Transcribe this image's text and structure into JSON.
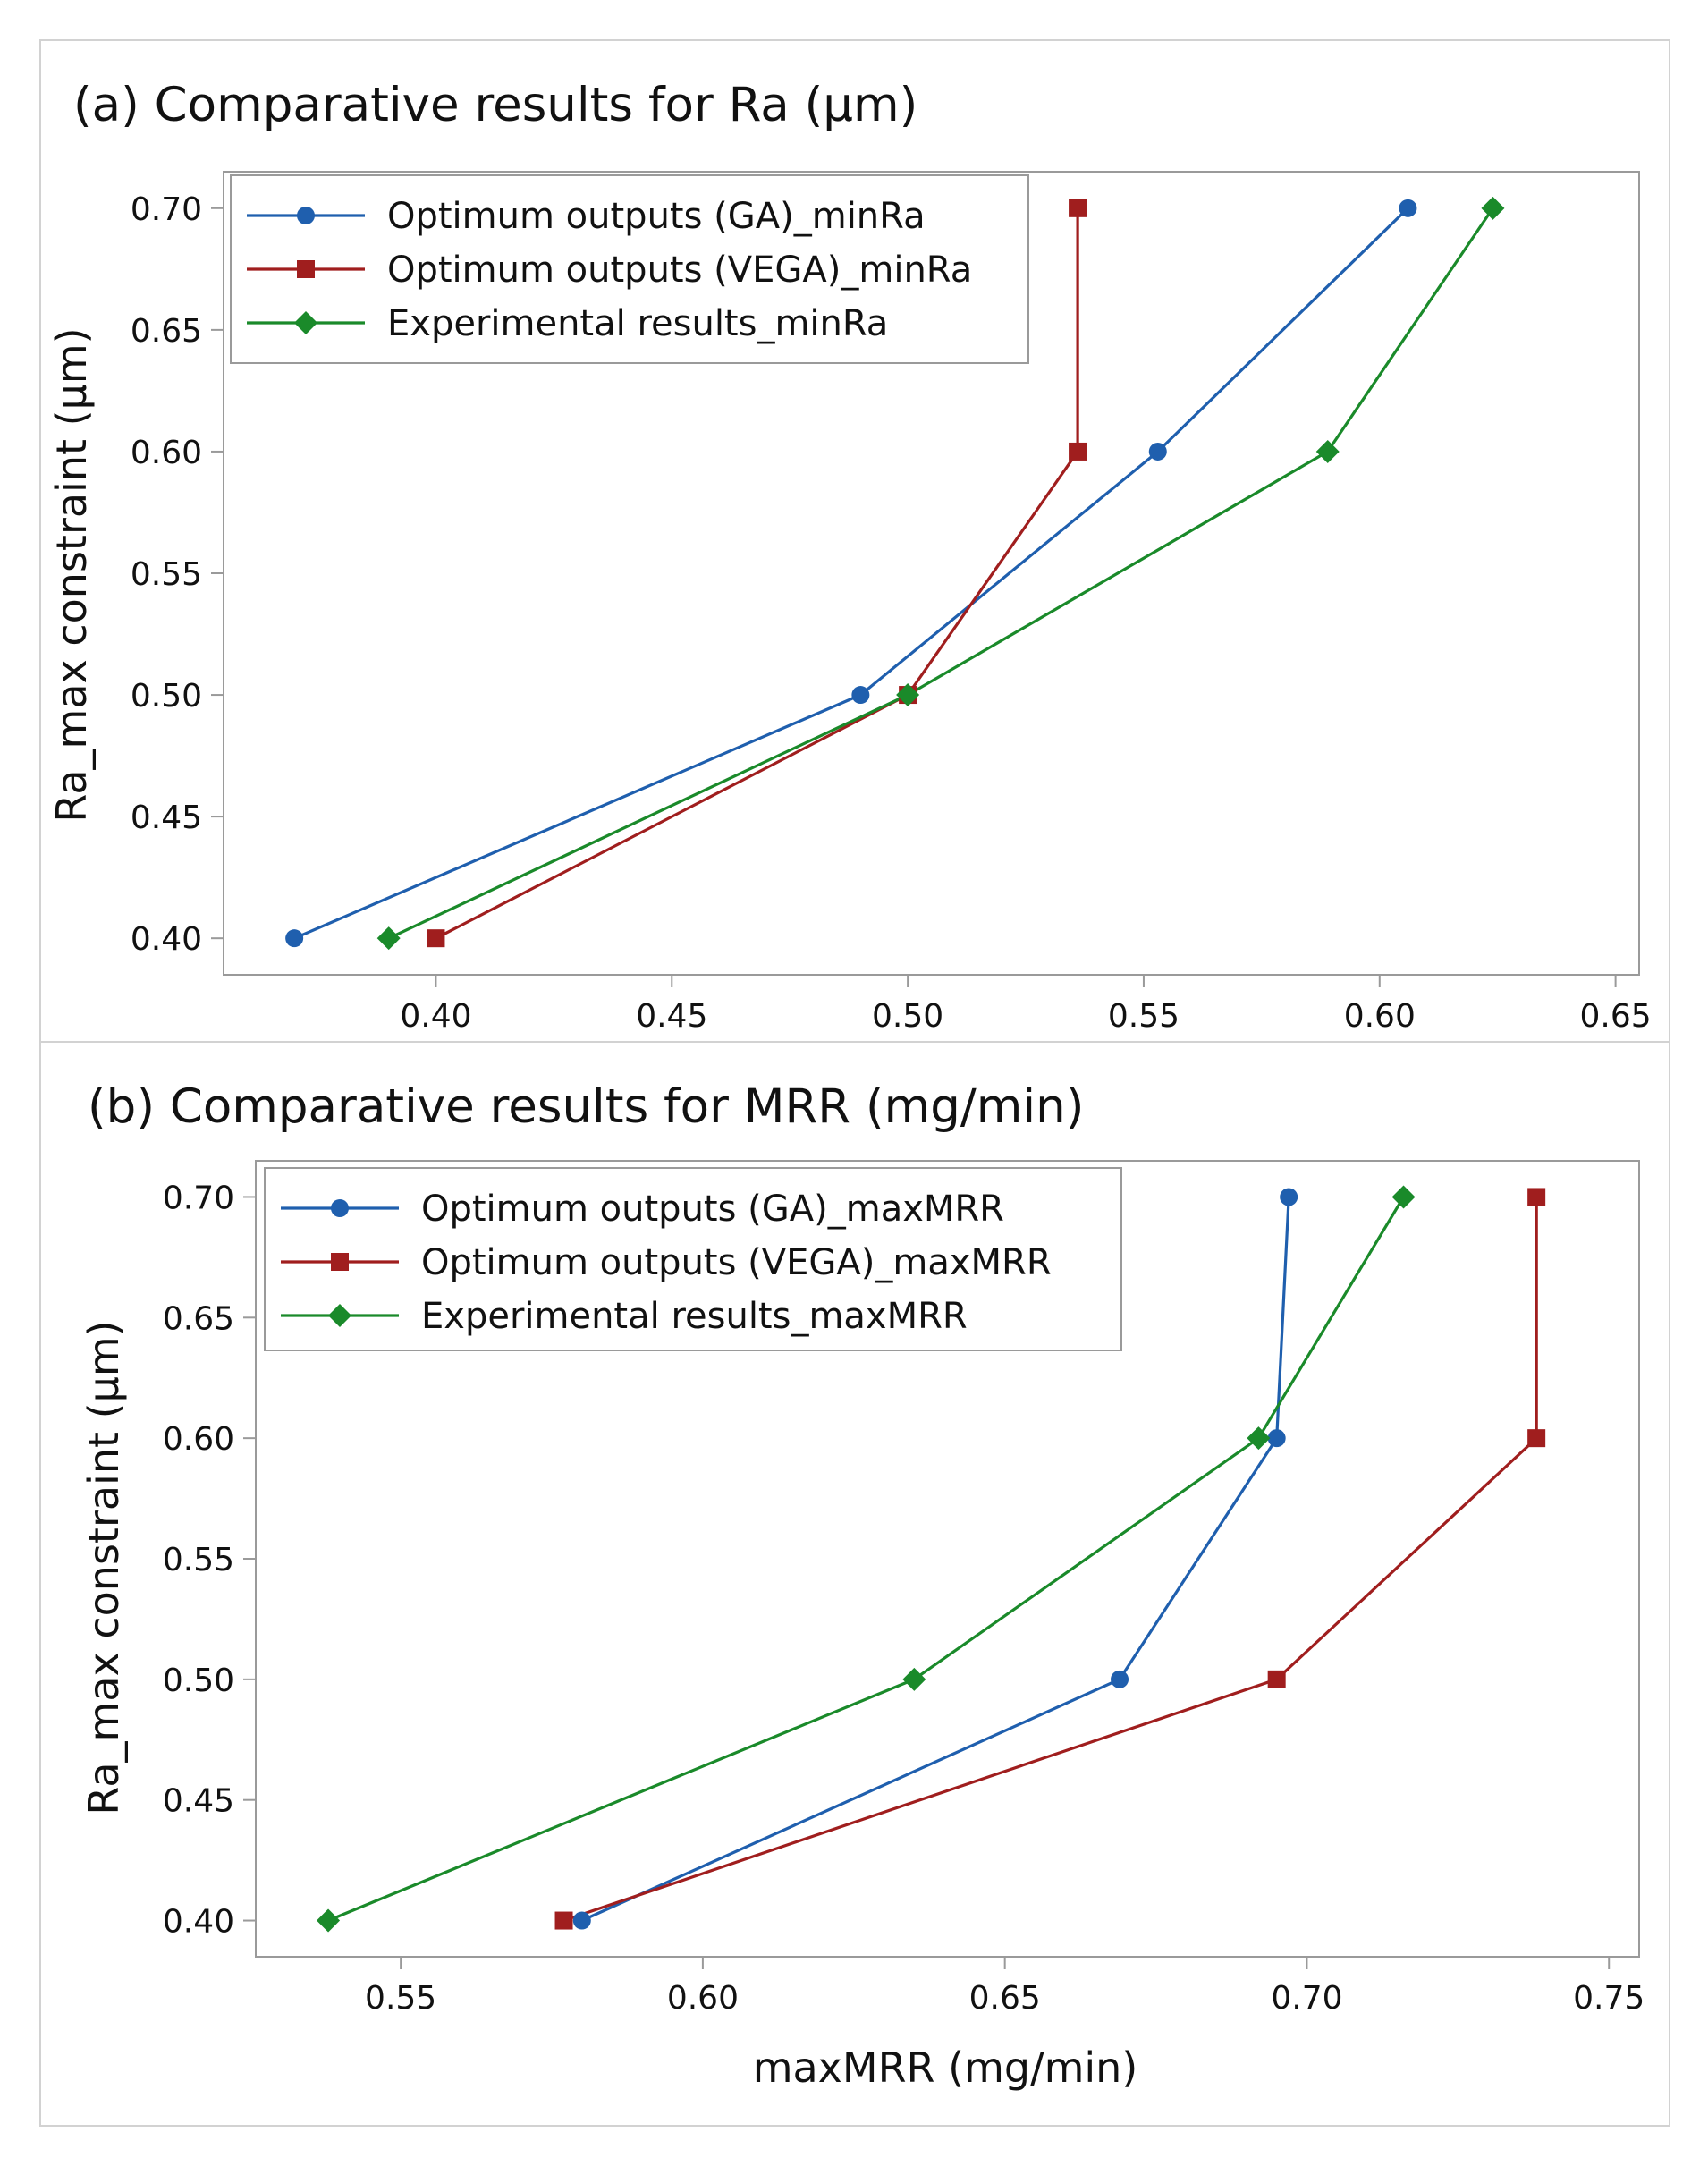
{
  "chart_data": [
    {
      "id": "a",
      "type": "line",
      "title": "(a) Comparative results for Ra (µm)",
      "xlabel": "",
      "ylabel": "Ra_max constraint (µm)",
      "xlim": [
        0.355,
        0.655
      ],
      "ylim": [
        0.385,
        0.715
      ],
      "xticks": [
        "0.40",
        "0.45",
        "0.50",
        "0.55",
        "0.60",
        "0.65"
      ],
      "yticks": [
        "0.40",
        "0.45",
        "0.50",
        "0.55",
        "0.60",
        "0.65",
        "0.70"
      ],
      "legend_position": "top-left",
      "series": [
        {
          "name": "Optimum outputs (GA)_minRa",
          "color": "#1f5fae",
          "marker": "circle",
          "x": [
            0.37,
            0.49,
            0.553,
            0.606
          ],
          "y": [
            0.4,
            0.5,
            0.6,
            0.7
          ]
        },
        {
          "name": "Optimum outputs (VEGA)_minRa",
          "color": "#a01e1e",
          "marker": "square",
          "x": [
            0.4,
            0.5,
            0.536,
            0.536
          ],
          "y": [
            0.4,
            0.5,
            0.6,
            0.7
          ]
        },
        {
          "name": "Experimental results_minRa",
          "color": "#1a8a2a",
          "marker": "diamond",
          "x": [
            0.39,
            0.5,
            0.589,
            0.624
          ],
          "y": [
            0.4,
            0.5,
            0.6,
            0.7
          ]
        }
      ]
    },
    {
      "id": "b",
      "type": "line",
      "title": "(b) Comparative results for MRR (mg/min)",
      "xlabel": "maxMRR (mg/min)",
      "ylabel": "Ra_max constraint (µm)",
      "xlim": [
        0.526,
        0.755
      ],
      "ylim": [
        0.385,
        0.715
      ],
      "xticks": [
        "0.55",
        "0.60",
        "0.65",
        "0.70",
        "0.75"
      ],
      "yticks": [
        "0.40",
        "0.45",
        "0.50",
        "0.55",
        "0.60",
        "0.65",
        "0.70"
      ],
      "legend_position": "top-left",
      "series": [
        {
          "name": "Optimum outputs (GA)_maxMRR",
          "color": "#1f5fae",
          "marker": "circle",
          "x": [
            0.58,
            0.669,
            0.695,
            0.697
          ],
          "y": [
            0.4,
            0.5,
            0.6,
            0.7
          ]
        },
        {
          "name": "Optimum outputs (VEGA)_maxMRR",
          "color": "#a01e1e",
          "marker": "square",
          "x": [
            0.577,
            0.695,
            0.738,
            0.738
          ],
          "y": [
            0.4,
            0.5,
            0.6,
            0.7
          ]
        },
        {
          "name": "Experimental results_maxMRR",
          "color": "#1a8a2a",
          "marker": "diamond",
          "x": [
            0.538,
            0.635,
            0.692,
            0.716
          ],
          "y": [
            0.4,
            0.5,
            0.6,
            0.7
          ]
        }
      ]
    }
  ]
}
